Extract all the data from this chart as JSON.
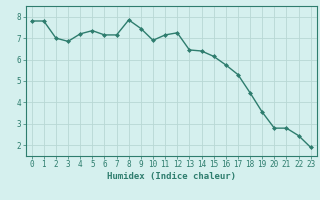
{
  "x": [
    0,
    1,
    2,
    3,
    4,
    5,
    6,
    7,
    8,
    9,
    10,
    11,
    12,
    13,
    14,
    15,
    16,
    17,
    18,
    19,
    20,
    21,
    22,
    23
  ],
  "y": [
    7.8,
    7.8,
    7.0,
    6.85,
    7.2,
    7.35,
    7.15,
    7.15,
    7.85,
    7.45,
    6.9,
    7.15,
    7.25,
    6.45,
    6.4,
    6.15,
    5.75,
    5.3,
    4.45,
    3.55,
    2.8,
    2.8,
    2.45,
    1.9
  ],
  "line_color": "#2e7d6e",
  "marker": "D",
  "marker_size": 2.0,
  "bg_color": "#d5f0ee",
  "grid_color": "#b8d8d4",
  "xlabel": "Humidex (Indice chaleur)",
  "xlim": [
    -0.5,
    23.5
  ],
  "ylim": [
    1.5,
    8.5
  ],
  "yticks": [
    2,
    3,
    4,
    5,
    6,
    7,
    8
  ],
  "xticks": [
    0,
    1,
    2,
    3,
    4,
    5,
    6,
    7,
    8,
    9,
    10,
    11,
    12,
    13,
    14,
    15,
    16,
    17,
    18,
    19,
    20,
    21,
    22,
    23
  ],
  "tick_color": "#2e7d6e",
  "label_color": "#2e7d6e",
  "font_size_xlabel": 6.5,
  "font_size_ticks": 5.5,
  "line_width": 1.0
}
